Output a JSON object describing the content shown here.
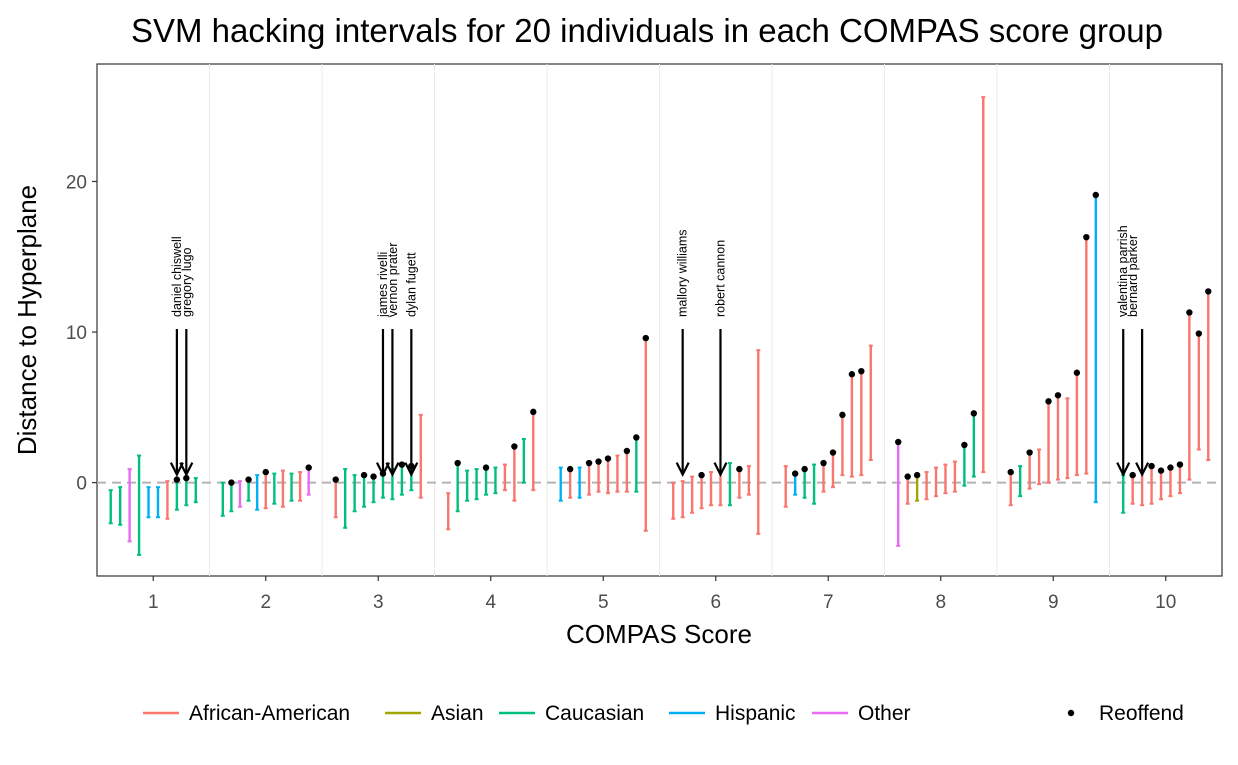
{
  "chart_data": {
    "type": "interval",
    "title": "SVM hacking intervals for 20 individuals in each COMPAS score group",
    "xlabel": "COMPAS Score",
    "ylabel": "Distance to Hyperplane",
    "x_ticks": [
      "1",
      "2",
      "3",
      "4",
      "5",
      "6",
      "7",
      "8",
      "9",
      "10"
    ],
    "y_ticks": [
      0,
      10,
      20
    ],
    "xlim": [
      0.5,
      10.5
    ],
    "ylim": [
      -6.2,
      27.8
    ],
    "grid": true,
    "reference_line": {
      "y": 0,
      "style": "dashed",
      "color": "#b3b3b3"
    },
    "legend_position": "bottom",
    "legend": [
      {
        "label": "African-American",
        "color": "#F8766D"
      },
      {
        "label": "Asian",
        "color": "#A3A500"
      },
      {
        "label": "Caucasian",
        "color": "#00BF7D"
      },
      {
        "label": "Hispanic",
        "color": "#00B0F6"
      },
      {
        "label": "Other",
        "color": "#E76BF3"
      }
    ],
    "point_legend": "Reoffend",
    "race_codes": {
      "A": "African-American",
      "S": "Asian",
      "C": "Caucasian",
      "H": "Hispanic",
      "O": "Other"
    },
    "intervals_format": [
      "score",
      "race",
      "low",
      "high",
      "reoffend_point"
    ],
    "intervals": [
      [
        1,
        "C",
        -2.7,
        -0.5,
        null
      ],
      [
        1,
        "C",
        -2.8,
        -0.3,
        null
      ],
      [
        1,
        "O",
        -3.9,
        0.9,
        null
      ],
      [
        1,
        "C",
        -4.8,
        1.8,
        null
      ],
      [
        1,
        "H",
        -2.3,
        -0.3,
        null
      ],
      [
        1,
        "H",
        -2.3,
        -0.3,
        null
      ],
      [
        1,
        "A",
        -2.4,
        0.1,
        null
      ],
      [
        1,
        "C",
        -1.8,
        0.2,
        0.2
      ],
      [
        1,
        "C",
        -1.5,
        0.3,
        0.3
      ],
      [
        1,
        "C",
        -1.3,
        0.3,
        null
      ],
      [
        2,
        "C",
        -2.2,
        0.0,
        null
      ],
      [
        2,
        "C",
        -1.9,
        0.0,
        0.0
      ],
      [
        2,
        "O",
        -1.6,
        0.1,
        null
      ],
      [
        2,
        "C",
        -1.2,
        0.2,
        0.2
      ],
      [
        2,
        "H",
        -1.8,
        0.5,
        null
      ],
      [
        2,
        "A",
        -1.7,
        0.7,
        0.7
      ],
      [
        2,
        "C",
        -1.4,
        0.6,
        null
      ],
      [
        2,
        "A",
        -1.6,
        0.8,
        null
      ],
      [
        2,
        "C",
        -1.2,
        0.6,
        null
      ],
      [
        2,
        "A",
        -1.2,
        0.7,
        null
      ],
      [
        2,
        "O",
        -0.8,
        1.0,
        1.0
      ],
      [
        3,
        "A",
        -2.3,
        0.2,
        0.2
      ],
      [
        3,
        "C",
        -3.0,
        0.9,
        null
      ],
      [
        3,
        "C",
        -1.9,
        0.5,
        null
      ],
      [
        3,
        "C",
        -1.6,
        0.5,
        0.5
      ],
      [
        3,
        "C",
        -1.3,
        0.4,
        0.4
      ],
      [
        3,
        "C",
        -1.0,
        0.6,
        0.6
      ],
      [
        3,
        "C",
        -1.1,
        0.9,
        null
      ],
      [
        3,
        "C",
        -0.8,
        1.2,
        1.2
      ],
      [
        3,
        "C",
        -0.5,
        1.1,
        1.1
      ],
      [
        3,
        "A",
        -1.0,
        4.5,
        null
      ],
      [
        4,
        "A",
        -3.1,
        -0.7,
        null
      ],
      [
        4,
        "C",
        -1.9,
        1.3,
        1.3
      ],
      [
        4,
        "C",
        -1.2,
        0.8,
        null
      ],
      [
        4,
        "C",
        -1.1,
        0.9,
        null
      ],
      [
        4,
        "C",
        -0.8,
        1.0,
        1.0
      ],
      [
        4,
        "C",
        -0.7,
        1.0,
        null
      ],
      [
        4,
        "A",
        -0.5,
        1.2,
        null
      ],
      [
        4,
        "A",
        -1.2,
        2.4,
        2.4
      ],
      [
        4,
        "C",
        0.0,
        2.9,
        null
      ],
      [
        4,
        "A",
        -0.5,
        4.7,
        4.7
      ],
      [
        5,
        "H",
        -1.2,
        1.0,
        null
      ],
      [
        5,
        "A",
        -1.0,
        0.9,
        0.9
      ],
      [
        5,
        "H",
        -1.0,
        1.0,
        null
      ],
      [
        5,
        "A",
        -0.8,
        1.3,
        1.3
      ],
      [
        5,
        "A",
        -0.6,
        1.4,
        1.4
      ],
      [
        5,
        "A",
        -0.7,
        1.6,
        1.6
      ],
      [
        5,
        "A",
        -0.6,
        1.8,
        null
      ],
      [
        5,
        "A",
        -0.6,
        2.1,
        2.1
      ],
      [
        5,
        "C",
        -0.6,
        3.0,
        3.0
      ],
      [
        5,
        "A",
        -3.2,
        9.6,
        9.6
      ],
      [
        6,
        "A",
        -2.4,
        0.0,
        null
      ],
      [
        6,
        "A",
        -2.3,
        0.1,
        null
      ],
      [
        6,
        "A",
        -2.0,
        0.4,
        null
      ],
      [
        6,
        "A",
        -1.7,
        0.5,
        0.5
      ],
      [
        6,
        "A",
        -1.5,
        0.7,
        null
      ],
      [
        6,
        "A",
        -1.5,
        0.7,
        null
      ],
      [
        6,
        "C",
        -1.5,
        1.3,
        null
      ],
      [
        6,
        "A",
        -1.0,
        0.9,
        0.9
      ],
      [
        6,
        "A",
        -0.8,
        1.1,
        null
      ],
      [
        6,
        "A",
        -3.4,
        8.8,
        null
      ],
      [
        7,
        "A",
        -1.6,
        1.1,
        null
      ],
      [
        7,
        "H",
        -0.8,
        0.6,
        0.6
      ],
      [
        7,
        "C",
        -1.0,
        0.9,
        0.9
      ],
      [
        7,
        "C",
        -1.4,
        1.2,
        null
      ],
      [
        7,
        "A",
        -0.6,
        1.3,
        1.3
      ],
      [
        7,
        "A",
        -0.3,
        2.0,
        2.0
      ],
      [
        7,
        "A",
        0.5,
        4.5,
        4.5
      ],
      [
        7,
        "A",
        0.4,
        7.2,
        7.2
      ],
      [
        7,
        "A",
        0.5,
        7.4,
        7.4
      ],
      [
        7,
        "A",
        1.5,
        9.1,
        null
      ],
      [
        8,
        "O",
        -4.2,
        2.7,
        2.7
      ],
      [
        8,
        "A",
        -1.4,
        0.4,
        0.4
      ],
      [
        8,
        "S",
        -1.2,
        0.5,
        0.5
      ],
      [
        8,
        "A",
        -1.1,
        0.7,
        null
      ],
      [
        8,
        "A",
        -0.9,
        1.0,
        null
      ],
      [
        8,
        "A",
        -0.7,
        1.2,
        null
      ],
      [
        8,
        "A",
        -0.6,
        1.4,
        null
      ],
      [
        8,
        "C",
        -0.2,
        2.5,
        2.5
      ],
      [
        8,
        "C",
        0.4,
        4.6,
        4.6
      ],
      [
        8,
        "A",
        0.7,
        25.6,
        null
      ],
      [
        9,
        "A",
        -1.5,
        0.7,
        0.7
      ],
      [
        9,
        "C",
        -0.9,
        1.1,
        null
      ],
      [
        9,
        "A",
        -0.4,
        2.0,
        2.0
      ],
      [
        9,
        "A",
        -0.1,
        2.2,
        null
      ],
      [
        9,
        "A",
        0.0,
        5.4,
        5.4
      ],
      [
        9,
        "A",
        0.2,
        5.8,
        5.8
      ],
      [
        9,
        "A",
        0.3,
        5.6,
        null
      ],
      [
        9,
        "A",
        0.5,
        7.3,
        7.3
      ],
      [
        9,
        "A",
        0.6,
        16.3,
        16.3
      ],
      [
        9,
        "H",
        -1.3,
        19.1,
        19.1
      ],
      [
        10,
        "C",
        -2.0,
        0.5,
        null
      ],
      [
        10,
        "A",
        -1.4,
        0.5,
        0.5
      ],
      [
        10,
        "A",
        -1.5,
        0.7,
        null
      ],
      [
        10,
        "A",
        -1.4,
        1.1,
        1.1
      ],
      [
        10,
        "A",
        -1.1,
        0.8,
        0.8
      ],
      [
        10,
        "A",
        -0.9,
        1.0,
        1.0
      ],
      [
        10,
        "A",
        -0.7,
        1.2,
        1.2
      ],
      [
        10,
        "A",
        0.2,
        11.3,
        11.3
      ],
      [
        10,
        "A",
        2.2,
        9.9,
        9.9
      ],
      [
        10,
        "A",
        1.5,
        12.7,
        12.7
      ]
    ],
    "annotations": [
      {
        "labels": [
          "daniel chiswell",
          "gregory lugo"
        ],
        "score": 1
      },
      {
        "labels": [
          "james rivelli",
          "vernon prater"
        ],
        "score": 3
      },
      {
        "labels": [
          "dylan fugett"
        ],
        "score": 3
      },
      {
        "labels": [
          "mallory williams"
        ],
        "score": 6
      },
      {
        "labels": [
          "robert cannon"
        ],
        "score": 6
      },
      {
        "labels": [
          "valentina parrish",
          "bernard parker"
        ],
        "score": 10
      }
    ]
  }
}
